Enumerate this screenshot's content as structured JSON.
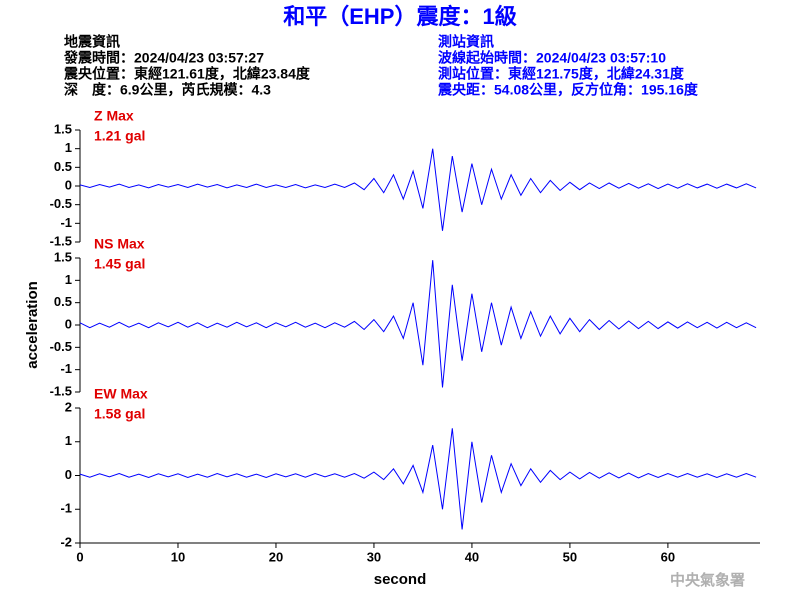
{
  "title": "和平（EHP）震度：1級",
  "info": {
    "left": [
      "地震資訊",
      "發震時間：2024/04/23 03:57:27",
      "震央位置：東經121.61度，北緯23.84度",
      "深　度：6.9公里，芮氏規模：4.3"
    ],
    "right": [
      "測站資訊",
      "波線起始時間：2024/04/23 03:57:10",
      "測站位置：東經121.75度，北緯24.31度",
      "震央距：54.08公里，反方位角：195.16度"
    ]
  },
  "watermark": "中央氣象署",
  "chart_data": [
    {
      "type": "line",
      "max_name": "Z Max",
      "max_value": "1.21 gal",
      "annotation_color": "#e00000",
      "color": "#0000ff",
      "x": [
        0,
        1,
        2,
        3,
        4,
        5,
        6,
        7,
        8,
        9,
        10,
        11,
        12,
        13,
        14,
        15,
        16,
        17,
        18,
        19,
        20,
        21,
        22,
        23,
        24,
        25,
        26,
        27,
        28,
        29,
        30,
        31,
        32,
        33,
        34,
        35,
        36,
        37,
        38,
        39,
        40,
        41,
        42,
        43,
        44,
        45,
        46,
        47,
        48,
        49,
        50,
        51,
        52,
        53,
        54,
        55,
        56,
        57,
        58,
        59,
        60,
        61,
        62,
        63,
        64,
        65,
        66,
        67,
        68,
        69
      ],
      "values": [
        0.03,
        -0.04,
        0.04,
        -0.03,
        0.05,
        -0.04,
        0.03,
        -0.05,
        0.04,
        -0.03,
        0.04,
        -0.04,
        0.05,
        -0.03,
        0.04,
        -0.05,
        0.03,
        -0.04,
        0.05,
        -0.04,
        0.03,
        -0.04,
        0.04,
        -0.05,
        0.03,
        -0.04,
        0.05,
        -0.04,
        0.08,
        -0.1,
        0.2,
        -0.18,
        0.3,
        -0.35,
        0.4,
        -0.6,
        1.0,
        -1.2,
        0.8,
        -0.7,
        0.6,
        -0.5,
        0.45,
        -0.35,
        0.3,
        -0.25,
        0.2,
        -0.18,
        0.15,
        -0.12,
        0.1,
        -0.1,
        0.08,
        -0.07,
        0.08,
        -0.06,
        0.07,
        -0.06,
        0.06,
        -0.07,
        0.05,
        -0.06,
        0.06,
        -0.05,
        0.05,
        -0.06,
        0.05,
        -0.05,
        0.06,
        -0.05
      ],
      "xlim": [
        0,
        69.4
      ],
      "ylim": [
        -1.5,
        1.5
      ],
      "yticks": [
        1.5,
        1,
        0.5,
        0,
        -0.5,
        -1,
        -1.5
      ]
    },
    {
      "type": "line",
      "max_name": "NS Max",
      "max_value": "1.45 gal",
      "annotation_color": "#e00000",
      "color": "#0000ff",
      "ylabel": "acceleration",
      "x": [
        0,
        1,
        2,
        3,
        4,
        5,
        6,
        7,
        8,
        9,
        10,
        11,
        12,
        13,
        14,
        15,
        16,
        17,
        18,
        19,
        20,
        21,
        22,
        23,
        24,
        25,
        26,
        27,
        28,
        29,
        30,
        31,
        32,
        33,
        34,
        35,
        36,
        37,
        38,
        39,
        40,
        41,
        42,
        43,
        44,
        45,
        46,
        47,
        48,
        49,
        50,
        51,
        52,
        53,
        54,
        55,
        56,
        57,
        58,
        59,
        60,
        61,
        62,
        63,
        64,
        65,
        66,
        67,
        68,
        69
      ],
      "values": [
        0.05,
        -0.06,
        0.04,
        -0.05,
        0.06,
        -0.05,
        0.04,
        -0.06,
        0.05,
        -0.04,
        0.06,
        -0.05,
        0.05,
        -0.06,
        0.04,
        -0.05,
        0.06,
        -0.04,
        0.05,
        -0.06,
        0.05,
        -0.04,
        0.06,
        -0.05,
        0.04,
        -0.06,
        0.05,
        -0.05,
        0.08,
        -0.1,
        0.12,
        -0.15,
        0.2,
        -0.3,
        0.5,
        -0.9,
        1.45,
        -1.4,
        0.9,
        -0.8,
        0.7,
        -0.6,
        0.5,
        -0.45,
        0.4,
        -0.3,
        0.3,
        -0.25,
        0.2,
        -0.2,
        0.15,
        -0.15,
        0.12,
        -0.1,
        0.1,
        -0.09,
        0.09,
        -0.08,
        0.08,
        -0.08,
        0.07,
        -0.07,
        0.07,
        -0.06,
        0.06,
        -0.07,
        0.06,
        -0.06,
        0.05,
        -0.06
      ],
      "xlim": [
        0,
        69.4
      ],
      "ylim": [
        -1.5,
        1.5
      ],
      "yticks": [
        1.5,
        1,
        0.5,
        0,
        -0.5,
        -1,
        -1.5
      ]
    },
    {
      "type": "line",
      "max_name": "EW Max",
      "max_value": "1.58 gal",
      "annotation_color": "#e00000",
      "color": "#0000ff",
      "xlabel": "second",
      "x": [
        0,
        1,
        2,
        3,
        4,
        5,
        6,
        7,
        8,
        9,
        10,
        11,
        12,
        13,
        14,
        15,
        16,
        17,
        18,
        19,
        20,
        21,
        22,
        23,
        24,
        25,
        26,
        27,
        28,
        29,
        30,
        31,
        32,
        33,
        34,
        35,
        36,
        37,
        38,
        39,
        40,
        41,
        42,
        43,
        44,
        45,
        46,
        47,
        48,
        49,
        50,
        51,
        52,
        53,
        54,
        55,
        56,
        57,
        58,
        59,
        60,
        61,
        62,
        63,
        64,
        65,
        66,
        67,
        68,
        69
      ],
      "values": [
        0.04,
        -0.05,
        0.05,
        -0.04,
        0.06,
        -0.05,
        0.04,
        -0.06,
        0.05,
        -0.04,
        0.05,
        -0.06,
        0.04,
        -0.05,
        0.06,
        -0.04,
        0.05,
        -0.05,
        0.04,
        -0.06,
        0.05,
        -0.04,
        0.05,
        -0.05,
        0.06,
        -0.04,
        0.05,
        -0.05,
        0.06,
        -0.08,
        0.1,
        -0.12,
        0.2,
        -0.25,
        0.3,
        -0.5,
        0.9,
        -1.0,
        1.4,
        -1.6,
        1.0,
        -0.8,
        0.6,
        -0.5,
        0.35,
        -0.3,
        0.2,
        -0.2,
        0.15,
        -0.12,
        0.1,
        -0.1,
        0.09,
        -0.08,
        0.08,
        -0.07,
        0.07,
        -0.07,
        0.06,
        -0.06,
        0.06,
        -0.05,
        0.06,
        -0.05,
        0.05,
        -0.06,
        0.05,
        -0.05,
        0.06,
        -0.05
      ],
      "xlim": [
        0,
        69.4
      ],
      "ylim": [
        -2,
        2
      ],
      "yticks": [
        2,
        1,
        0,
        -1,
        -2
      ],
      "xticks": [
        0,
        10,
        20,
        30,
        40,
        50,
        60
      ]
    }
  ]
}
